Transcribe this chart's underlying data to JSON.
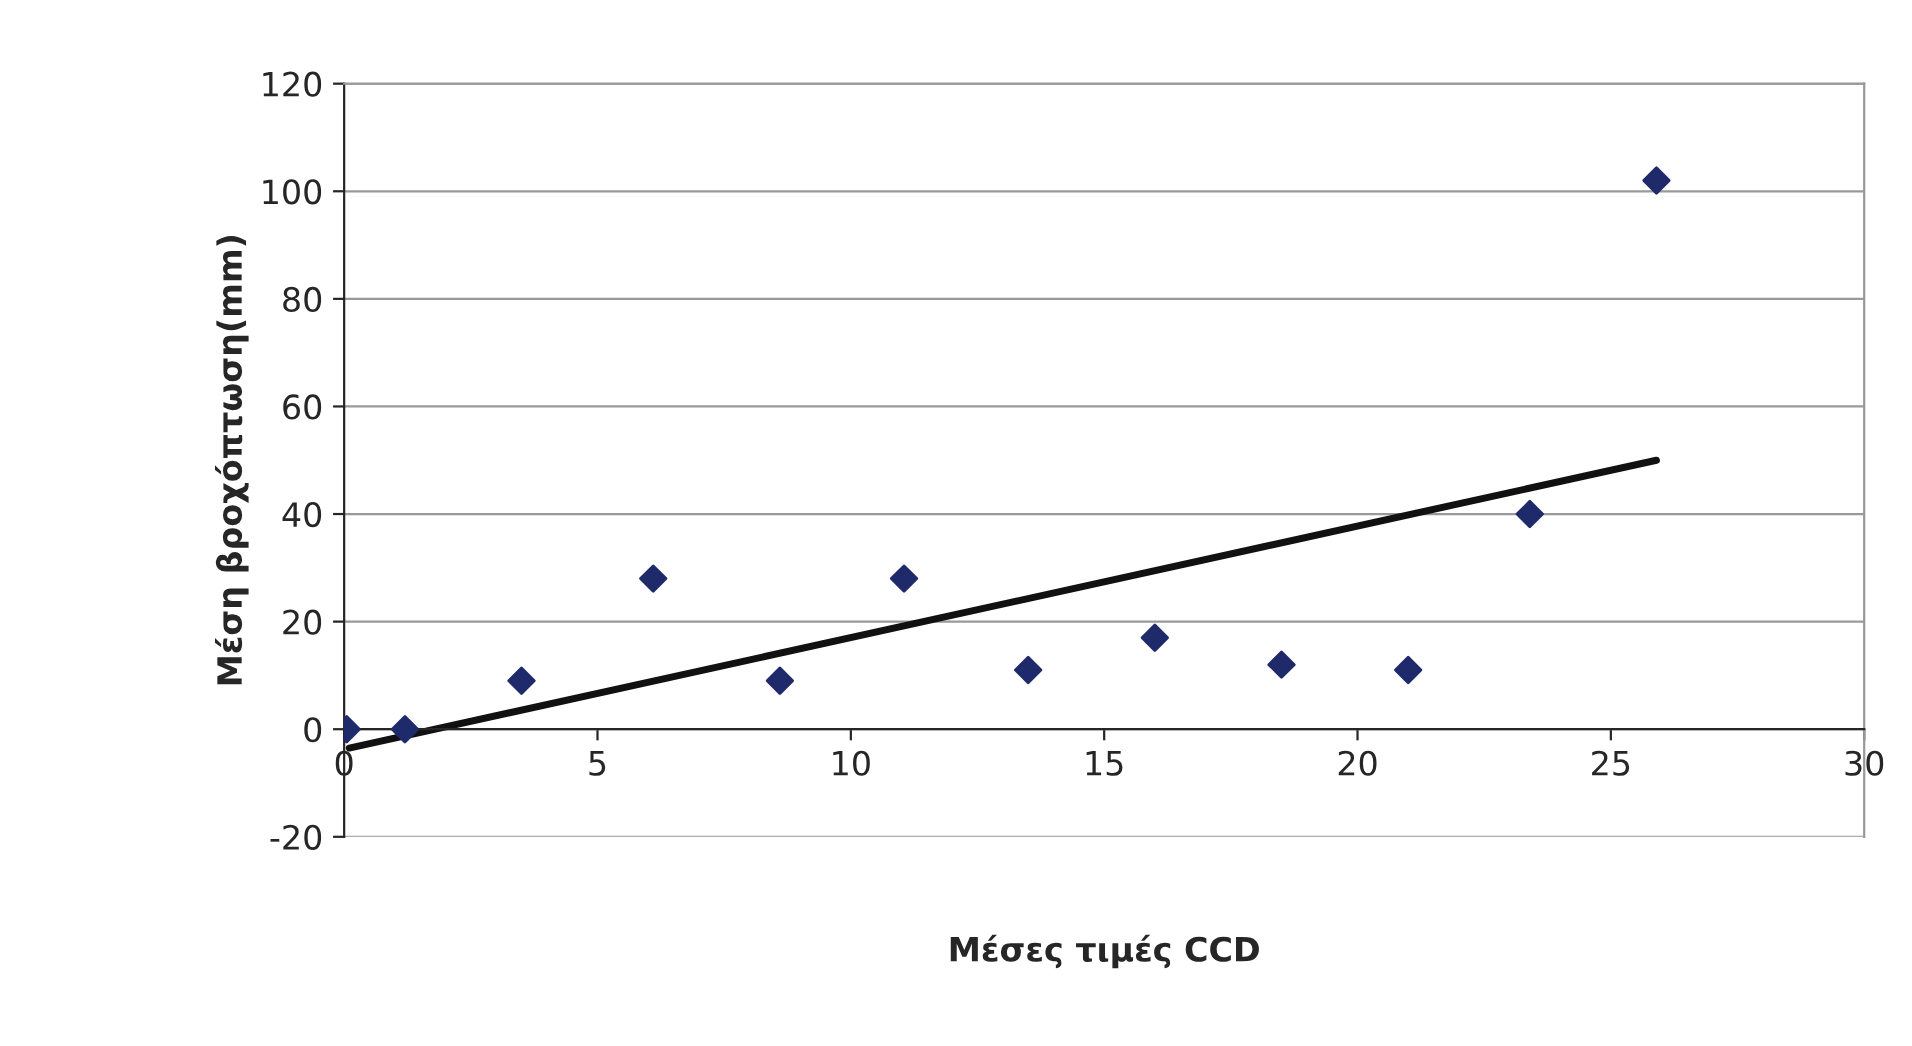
{
  "chart_data": {
    "type": "scatter",
    "xlabel": "Μέσες τιμές CCD",
    "ylabel": "Μέση βροχόπτωση(mm)",
    "xlim": [
      0,
      30
    ],
    "xticks": [
      0,
      5,
      10,
      15,
      20,
      25,
      30
    ],
    "ylim": [
      -20,
      120
    ],
    "yticks": [
      -20,
      0,
      20,
      40,
      60,
      80,
      100,
      120
    ],
    "grid": "y",
    "series": [
      {
        "marker": "diamond",
        "color": "#1f2a6b",
        "x": [
          0.05,
          1.2,
          3.5,
          6.1,
          8.6,
          11.05,
          13.5,
          16.0,
          18.5,
          21.0,
          23.4,
          25.9
        ],
        "values": [
          0,
          0,
          9,
          28,
          9,
          28,
          11,
          17,
          12,
          11,
          40,
          102
        ]
      },
      {
        "type": "line",
        "marker": "none",
        "color": "#111111",
        "x": [
          0.1,
          25.9
        ],
        "values": [
          -3.5,
          50
        ]
      }
    ]
  }
}
